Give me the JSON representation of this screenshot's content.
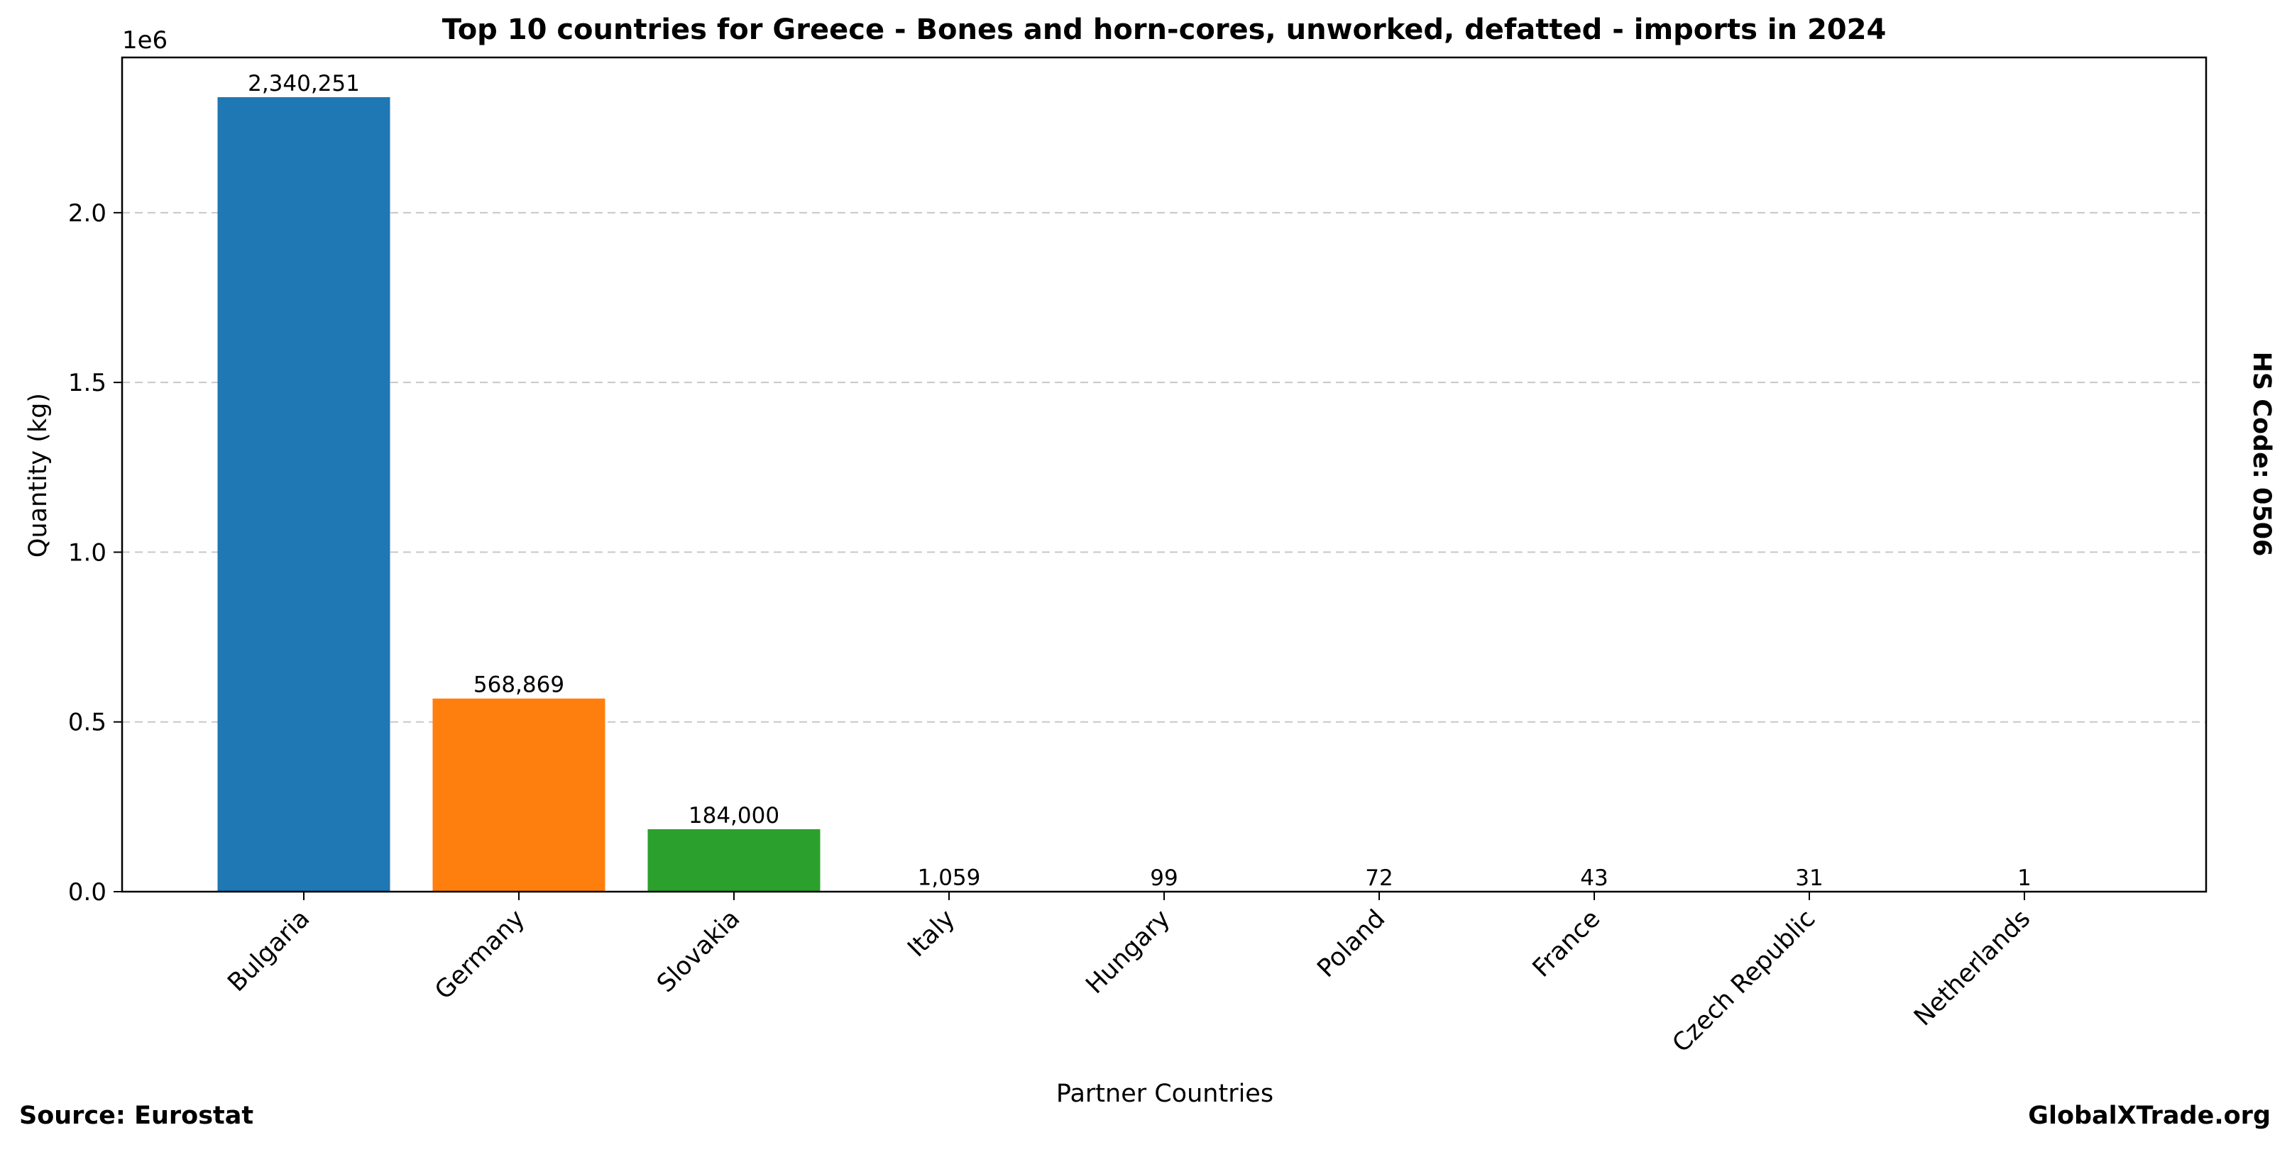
{
  "chart_data": {
    "type": "bar",
    "title": "Top 10 countries for Greece - Bones and horn-cores, unworked, defatted - imports in 2024",
    "xlabel": "Partner Countries",
    "ylabel": "Quantity (kg)",
    "y_offset_label": "1e6",
    "ylim": [
      0,
      2457263
    ],
    "yticks": [
      0,
      500000,
      1000000,
      1500000,
      2000000
    ],
    "ytick_labels": [
      "0.0",
      "0.5",
      "1.0",
      "1.5",
      "2.0"
    ],
    "grid": "horizontal dashed",
    "categories": [
      "Bulgaria",
      "Germany",
      "Slovakia",
      "Italy",
      "Hungary",
      "Poland",
      "France",
      "Czech Republic",
      "Netherlands"
    ],
    "values": [
      2340251,
      568869,
      184000,
      1059,
      99,
      72,
      43,
      31,
      1
    ],
    "value_labels": [
      "2,340,251",
      "568,869",
      "184,000",
      "1,059",
      "99",
      "72",
      "43",
      "31",
      "1"
    ],
    "colors": [
      "#1f77b4",
      "#ff7f0e",
      "#2ca02c",
      "#d62728",
      "#9467bd",
      "#8c564b",
      "#e377c2",
      "#7f7f7f",
      "#bcbd22"
    ],
    "side_label": "HS Code: 0506"
  },
  "footer": {
    "source": "Source: Eurostat",
    "brand": "GlobalXTrade.org"
  }
}
